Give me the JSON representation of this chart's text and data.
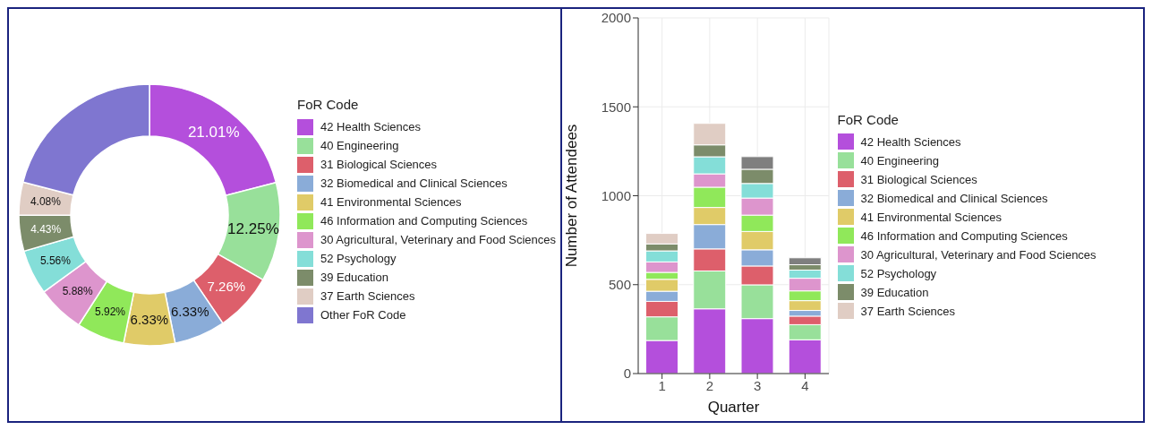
{
  "chart_data": [
    {
      "type": "donut",
      "legend_title": "FoR Code",
      "legend": "right",
      "categories": [
        "42 Health Sciences",
        "40 Engineering",
        "31 Biological Sciences",
        "32 Biomedical and Clinical Sciences",
        "41 Environmental Sciences",
        "46 Information and Computing Sciences",
        "30 Agricultural, Veterinary and Food Sciences",
        "52 Psychology",
        "39 Education",
        "37 Earth Sciences",
        "Other FoR Code"
      ],
      "values": [
        21.01,
        12.25,
        7.26,
        6.33,
        6.33,
        5.92,
        5.88,
        5.56,
        4.43,
        4.08,
        20.95
      ],
      "value_labels": [
        "21.01%",
        "12.25%",
        "7.26%",
        "6.33%",
        "6.33%",
        "5.92%",
        "5.88%",
        "5.56%",
        "4.43%",
        "4.08%",
        null
      ],
      "colors": [
        "#b44fdc",
        "#98e09a",
        "#dd5f6b",
        "#8aacd8",
        "#e0cb68",
        "#90e85a",
        "#dd95cd",
        "#84ded8",
        "#7c8c6a",
        "#e0cdc4",
        "#7f76d0"
      ]
    },
    {
      "type": "bar",
      "stacked": true,
      "xlabel": "Quarter",
      "ylabel": "Number of Attendees",
      "legend_title": "FoR Code",
      "legend": "right",
      "grid": true,
      "categories": [
        "1",
        "2",
        "3",
        "4"
      ],
      "ylim": [
        0,
        2000
      ],
      "yticks": [
        0,
        500,
        1000,
        1500,
        2000
      ],
      "series": [
        {
          "name": "42 Health Sciences",
          "color": "#b44fdc",
          "values": [
            186,
            364,
            309,
            190
          ]
        },
        {
          "name": "40 Engineering",
          "color": "#98e09a",
          "values": [
            133,
            213,
            190,
            85
          ]
        },
        {
          "name": "31 Biological Sciences",
          "color": "#dd5f6b",
          "values": [
            87,
            124,
            106,
            48
          ]
        },
        {
          "name": "32 Biomedical and Clinical Sciences",
          "color": "#8aacd8",
          "values": [
            57,
            137,
            91,
            32
          ]
        },
        {
          "name": "41 Environmental Sciences",
          "color": "#e0cb68",
          "values": [
            67,
            96,
            103,
            55
          ]
        },
        {
          "name": "46 Information and Computing Sciences",
          "color": "#90e85a",
          "values": [
            39,
            114,
            92,
            55
          ]
        },
        {
          "name": "30 Agricultural, Veterinary and Food Sciences",
          "color": "#dd95cd",
          "values": [
            59,
            75,
            96,
            71
          ]
        },
        {
          "name": "52 Psychology",
          "color": "#84ded8",
          "values": [
            62,
            96,
            82,
            46
          ]
        },
        {
          "name": "39 Education",
          "color": "#7c8c6a",
          "values": [
            39,
            67,
            80,
            30
          ]
        },
        {
          "name": "37 Earth Sciences",
          "color": "#e0cdc4",
          "values": [
            59,
            121,
            null,
            null
          ]
        },
        {
          "color": "#7f7f7f",
          "values": [
            null,
            null,
            71,
            39
          ]
        }
      ]
    }
  ]
}
